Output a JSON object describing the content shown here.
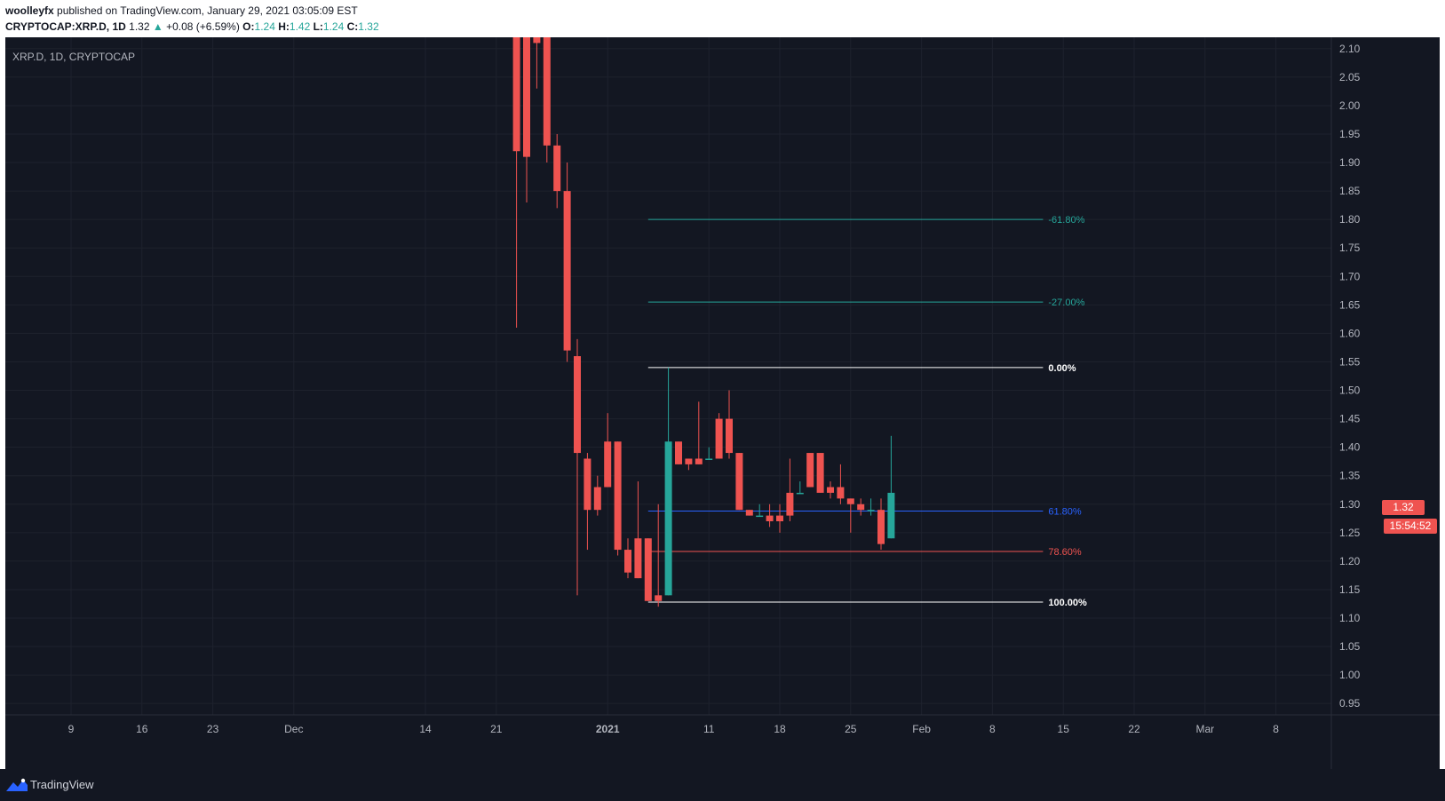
{
  "header": {
    "author": "woolleyfx",
    "published_text": "published on TradingView.com, January 29, 2021 03:05:09 EST",
    "symbol": "CRYPTOCAP:XRP.D, 1D",
    "last": "1.32",
    "change": "+0.08 (+6.59%)",
    "o_label": "O:",
    "o_val": "1.24",
    "h_label": "H:",
    "h_val": "1.42",
    "l_label": "L:",
    "l_val": "1.24",
    "c_label": "C:",
    "c_val": "1.32"
  },
  "legend": "XRP.D, 1D, CRYPTOCAP",
  "price_tag": "1.32",
  "timer_tag": "15:54:52",
  "footer": {
    "brand": "TradingView"
  },
  "colors": {
    "background": "#131722",
    "candle_down": "#ef5350",
    "fib_green": "#26a69a",
    "fib_blue": "#2962ff",
    "fib_red": "#ef5350",
    "fib_white": "#ffffff",
    "axis_text": "#b2b5be"
  },
  "chart_data": {
    "type": "candlestick",
    "y_axis": {
      "ticks": [
        "2.10",
        "2.05",
        "2.00",
        "1.95",
        "1.90",
        "1.85",
        "1.80",
        "1.75",
        "1.70",
        "1.65",
        "1.60",
        "1.55",
        "1.50",
        "1.45",
        "1.40",
        "1.35",
        "1.30",
        "1.25",
        "1.20",
        "1.15",
        "1.10",
        "1.05",
        "1.00",
        "0.95"
      ],
      "range": [
        0.93,
        2.12
      ]
    },
    "x_axis": {
      "ticks": [
        {
          "label": "9",
          "day": 0
        },
        {
          "label": "16",
          "day": 7
        },
        {
          "label": "23",
          "day": 14
        },
        {
          "label": "Dec",
          "day": 22
        },
        {
          "label": "14",
          "day": 35
        },
        {
          "label": "21",
          "day": 42
        },
        {
          "label": "2021",
          "day": 53
        },
        {
          "label": "11",
          "day": 63
        },
        {
          "label": "18",
          "day": 70
        },
        {
          "label": "25",
          "day": 77
        },
        {
          "label": "Feb",
          "day": 84
        },
        {
          "label": "8",
          "day": 91
        },
        {
          "label": "15",
          "day": 98
        },
        {
          "label": "22",
          "day": 105
        },
        {
          "label": "Mar",
          "day": 112
        },
        {
          "label": "8",
          "day": 119
        }
      ]
    },
    "candles": [
      {
        "day": 44,
        "o": 2.4,
        "h": 2.6,
        "l": 1.61,
        "c": 1.92
      },
      {
        "day": 45,
        "o": 2.3,
        "h": 2.35,
        "l": 1.83,
        "c": 1.91
      },
      {
        "day": 46,
        "o": 2.2,
        "h": 2.2,
        "l": 2.03,
        "c": 2.11
      },
      {
        "day": 47,
        "o": 2.2,
        "h": 2.25,
        "l": 1.9,
        "c": 1.93
      },
      {
        "day": 48,
        "o": 1.93,
        "h": 1.95,
        "l": 1.82,
        "c": 1.85
      },
      {
        "day": 49,
        "o": 1.85,
        "h": 1.9,
        "l": 1.55,
        "c": 1.57
      },
      {
        "day": 50,
        "o": 1.56,
        "h": 1.59,
        "l": 1.14,
        "c": 1.39
      },
      {
        "day": 51,
        "o": 1.38,
        "h": 1.39,
        "l": 1.22,
        "c": 1.29
      },
      {
        "day": 52,
        "o": 1.33,
        "h": 1.35,
        "l": 1.28,
        "c": 1.29
      },
      {
        "day": 53,
        "o": 1.41,
        "h": 1.46,
        "l": 1.33,
        "c": 1.33
      },
      {
        "day": 54,
        "o": 1.41,
        "h": 1.41,
        "l": 1.21,
        "c": 1.22
      },
      {
        "day": 55,
        "o": 1.22,
        "h": 1.24,
        "l": 1.17,
        "c": 1.18
      },
      {
        "day": 56,
        "o": 1.24,
        "h": 1.34,
        "l": 1.17,
        "c": 1.17
      },
      {
        "day": 57,
        "o": 1.24,
        "h": 1.24,
        "l": 1.13,
        "c": 1.13
      },
      {
        "day": 58,
        "o": 1.14,
        "h": 1.3,
        "l": 1.12,
        "c": 1.13
      },
      {
        "day": 59,
        "o": 1.14,
        "h": 1.54,
        "l": 1.14,
        "c": 1.41
      },
      {
        "day": 60,
        "o": 1.41,
        "h": 1.41,
        "l": 1.37,
        "c": 1.37
      },
      {
        "day": 61,
        "o": 1.38,
        "h": 1.38,
        "l": 1.36,
        "c": 1.37
      },
      {
        "day": 62,
        "o": 1.38,
        "h": 1.48,
        "l": 1.37,
        "c": 1.37
      },
      {
        "day": 63,
        "o": 1.38,
        "h": 1.4,
        "l": 1.38,
        "c": 1.38
      },
      {
        "day": 64,
        "o": 1.45,
        "h": 1.46,
        "l": 1.38,
        "c": 1.38
      },
      {
        "day": 65,
        "o": 1.45,
        "h": 1.5,
        "l": 1.38,
        "c": 1.39
      },
      {
        "day": 66,
        "o": 1.39,
        "h": 1.39,
        "l": 1.29,
        "c": 1.29
      },
      {
        "day": 67,
        "o": 1.29,
        "h": 1.29,
        "l": 1.28,
        "c": 1.28
      },
      {
        "day": 68,
        "o": 1.28,
        "h": 1.3,
        "l": 1.28,
        "c": 1.28
      },
      {
        "day": 69,
        "o": 1.28,
        "h": 1.3,
        "l": 1.26,
        "c": 1.27
      },
      {
        "day": 70,
        "o": 1.28,
        "h": 1.3,
        "l": 1.25,
        "c": 1.27
      },
      {
        "day": 71,
        "o": 1.32,
        "h": 1.38,
        "l": 1.27,
        "c": 1.28
      },
      {
        "day": 72,
        "o": 1.32,
        "h": 1.34,
        "l": 1.32,
        "c": 1.32
      },
      {
        "day": 73,
        "o": 1.39,
        "h": 1.39,
        "l": 1.33,
        "c": 1.33
      },
      {
        "day": 74,
        "o": 1.39,
        "h": 1.39,
        "l": 1.32,
        "c": 1.32
      },
      {
        "day": 75,
        "o": 1.33,
        "h": 1.34,
        "l": 1.31,
        "c": 1.32
      },
      {
        "day": 76,
        "o": 1.33,
        "h": 1.37,
        "l": 1.3,
        "c": 1.31
      },
      {
        "day": 77,
        "o": 1.31,
        "h": 1.31,
        "l": 1.25,
        "c": 1.3
      },
      {
        "day": 78,
        "o": 1.3,
        "h": 1.31,
        "l": 1.28,
        "c": 1.29
      },
      {
        "day": 79,
        "o": 1.29,
        "h": 1.31,
        "l": 1.28,
        "c": 1.29
      },
      {
        "day": 80,
        "o": 1.29,
        "h": 1.31,
        "l": 1.22,
        "c": 1.23
      },
      {
        "day": 81,
        "o": 1.24,
        "h": 1.42,
        "l": 1.24,
        "c": 1.32
      }
    ],
    "fibonacci": {
      "start_day": 57,
      "end_day": 96,
      "levels": [
        {
          "label": "-61.80%",
          "value": 1.8,
          "color": "#26a69a",
          "bold": false
        },
        {
          "label": "-27.00%",
          "value": 1.655,
          "color": "#26a69a",
          "bold": false
        },
        {
          "label": "0.00%",
          "value": 1.54,
          "color": "#ffffff",
          "bold": true
        },
        {
          "label": "61.80%",
          "value": 1.288,
          "color": "#2962ff",
          "bold": false
        },
        {
          "label": "78.60%",
          "value": 1.217,
          "color": "#ef5350",
          "bold": false
        },
        {
          "label": "100.00%",
          "value": 1.128,
          "color": "#ffffff",
          "bold": true
        }
      ]
    }
  }
}
